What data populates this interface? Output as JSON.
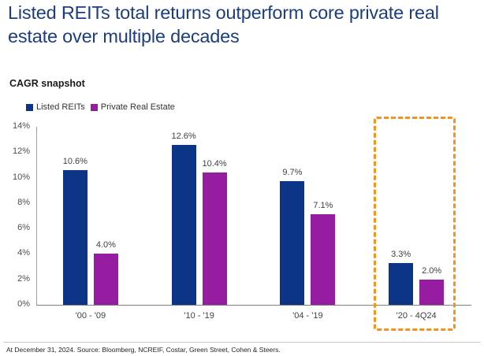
{
  "slide": {
    "title": "Listed REITs total returns outperform core private real estate over multiple decades",
    "subtitle": "CAGR snapshot",
    "footnote": "At December 31, 2024. Source: Bloomberg, NCREIF, Costar, Green Street, Cohen & Steers."
  },
  "legend": {
    "items": [
      {
        "label": "Listed REITs",
        "color": "#0c3588"
      },
      {
        "label": "Private Real Estate",
        "color": "#961da1"
      }
    ]
  },
  "colors": {
    "title_navy": "#1c3d80",
    "listed_reits_bar": "#0c3588",
    "private_real_estate_bar": "#961da1",
    "highlight_orange": "#f6921e",
    "axis_gray": "#7f7f7f"
  },
  "chart_data": {
    "type": "bar",
    "title": "CAGR snapshot",
    "categories": [
      "'00 - '09",
      "'10 - '19",
      "'04 - '19",
      "'20 - 4Q24"
    ],
    "series": [
      {
        "name": "Listed REITs",
        "color": "#0c3588",
        "values": [
          10.6,
          12.6,
          9.7,
          3.3
        ],
        "labels": [
          "10.6%",
          "12.6%",
          "9.7%",
          "3.3%"
        ]
      },
      {
        "name": "Private Real Estate",
        "color": "#961da1",
        "values": [
          4.0,
          10.4,
          7.1,
          2.0
        ],
        "labels": [
          "4.0%",
          "10.4%",
          "7.1%",
          "2.0%"
        ]
      }
    ],
    "y_ticks": [
      "0%",
      "2%",
      "4%",
      "6%",
      "8%",
      "10%",
      "12%",
      "14%"
    ],
    "ylim": [
      0,
      14
    ],
    "grid": false,
    "legend_position": "top-left",
    "value_labels_shown": true,
    "highlight": {
      "category": "'20 - 4Q24",
      "style": "orange-dashed-box",
      "color": "#f6921e"
    }
  }
}
